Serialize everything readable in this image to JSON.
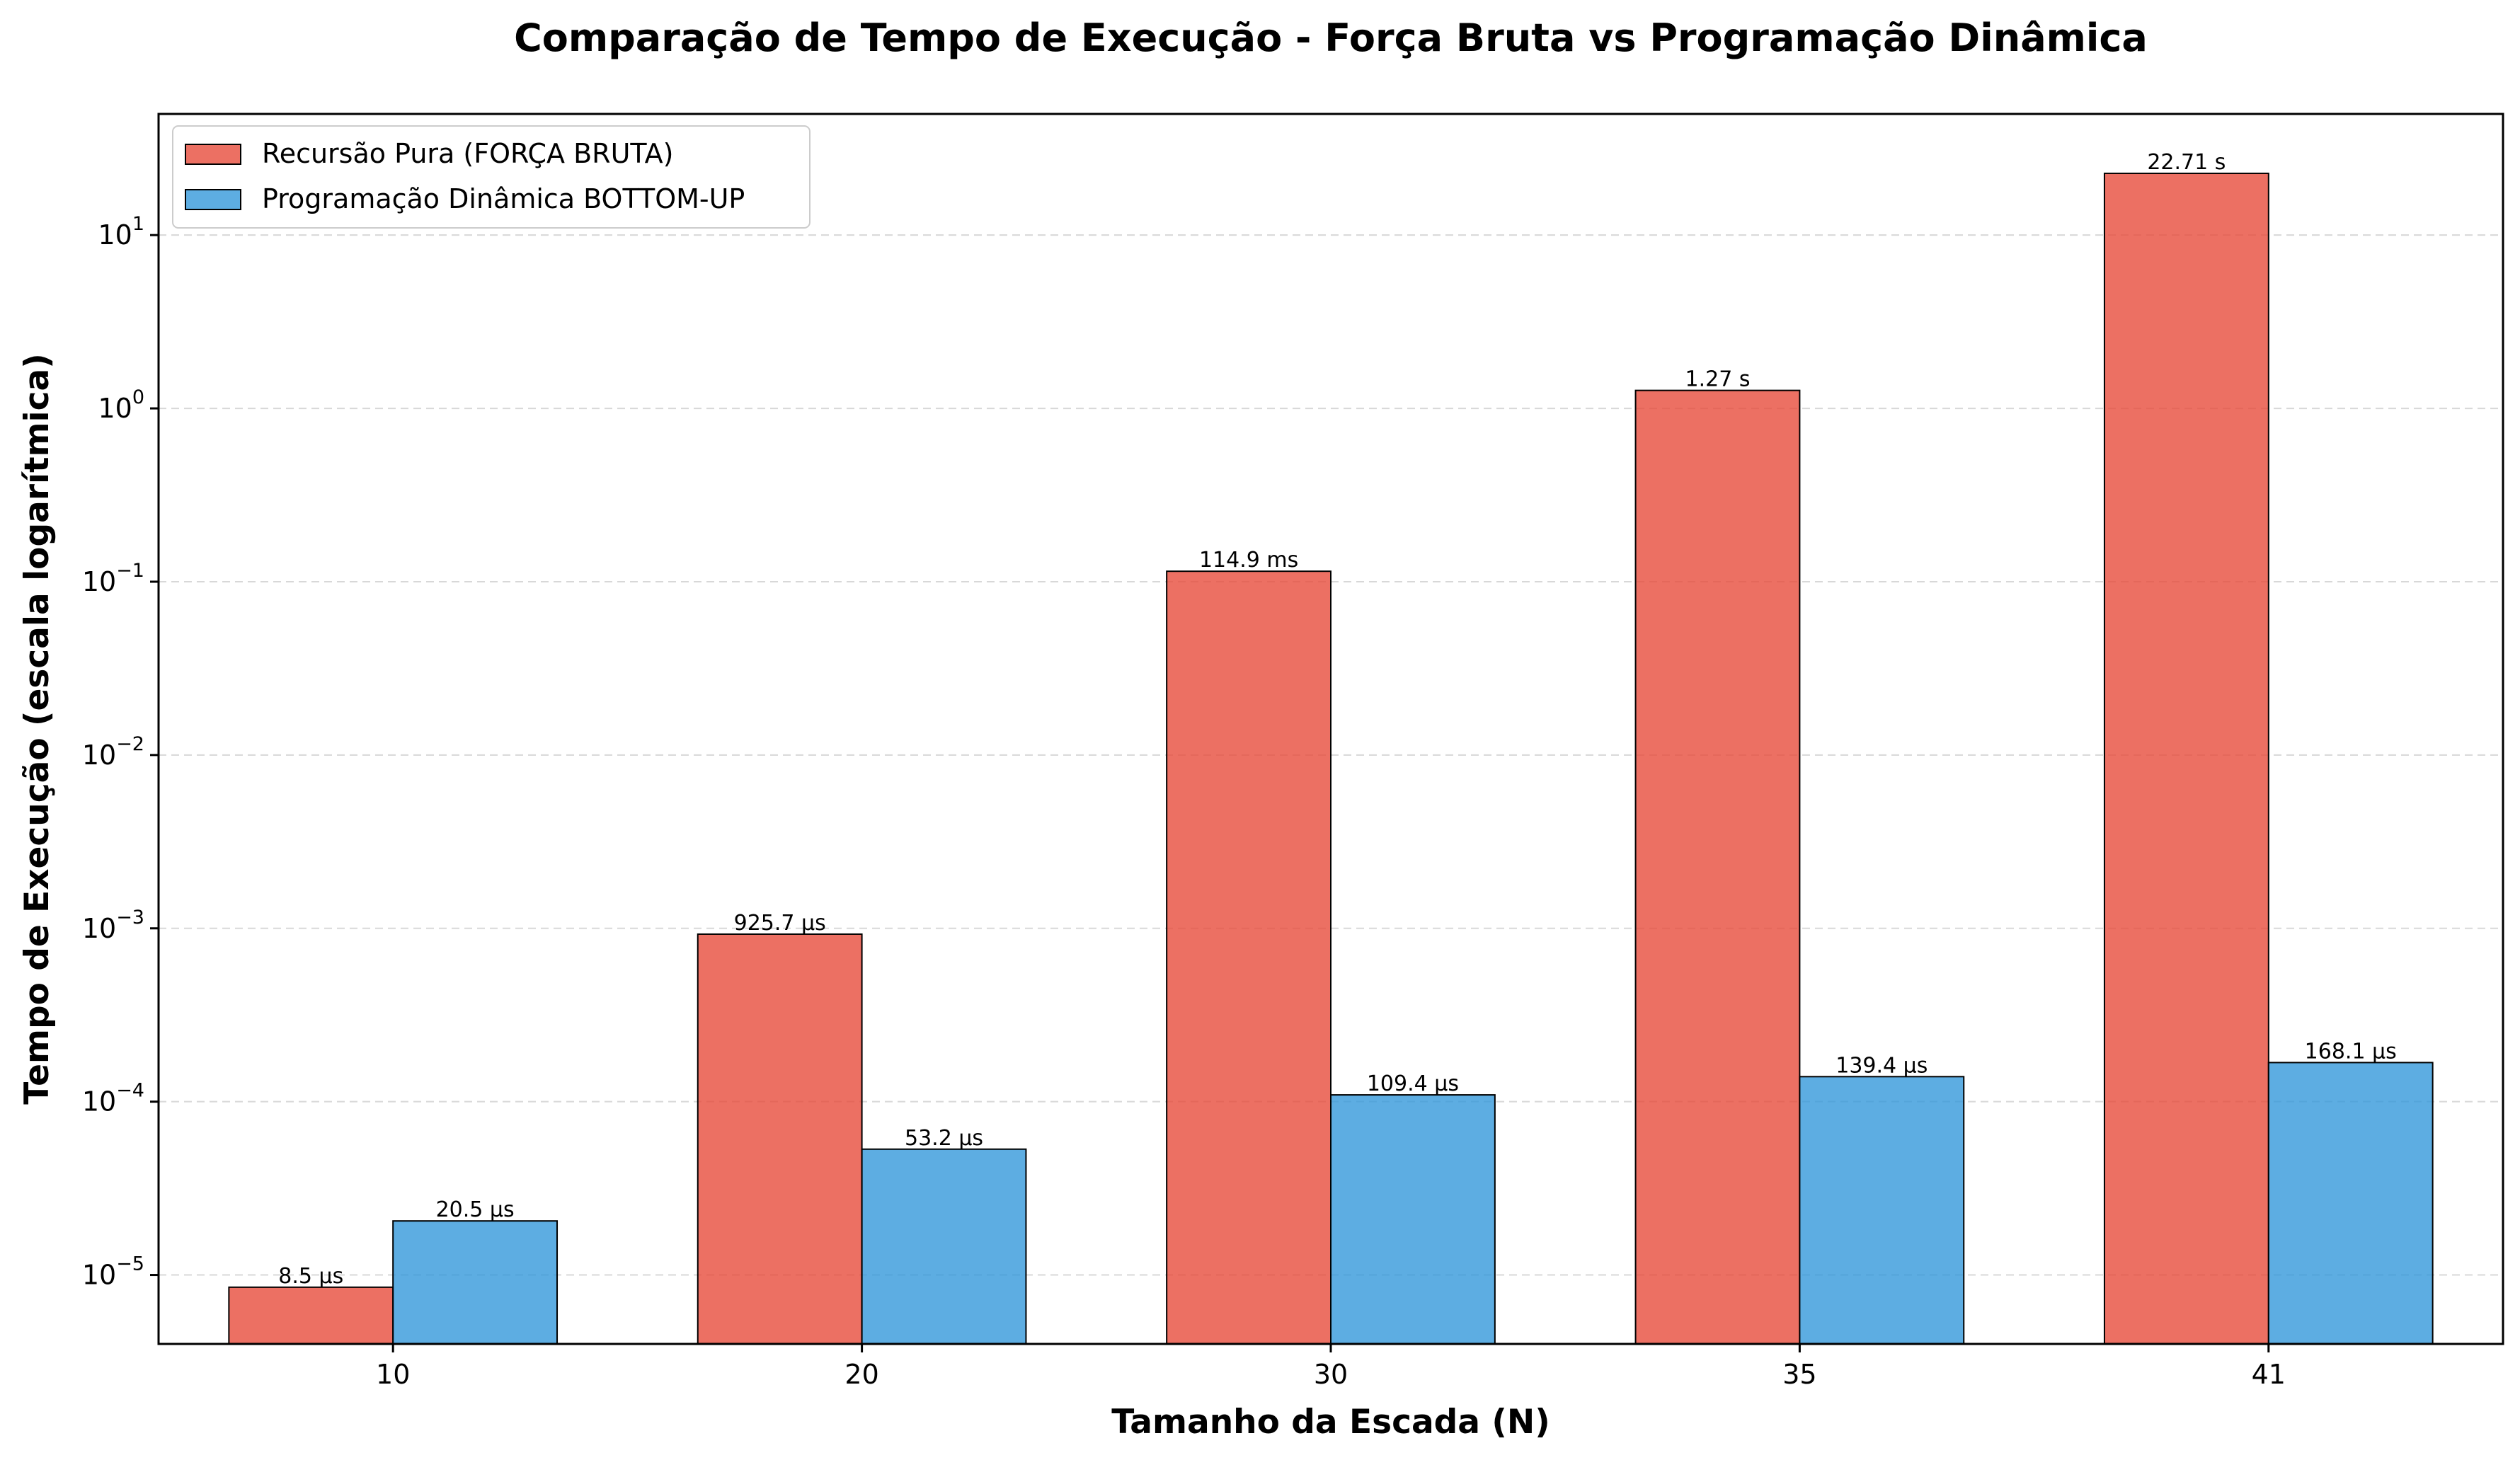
{
  "chart_data": {
    "type": "bar",
    "title": "Comparação de Tempo de Execução - Força Bruta vs Programação Dinâmica",
    "xlabel": "Tamanho da Escada (N)",
    "ylabel": "Tempo de Execução (escala logarítmica)",
    "yscale": "log",
    "ylim": [
      4e-06,
      50
    ],
    "yticks": [
      {
        "value": 1e-05,
        "base": "10",
        "exp": "−5"
      },
      {
        "value": 0.0001,
        "base": "10",
        "exp": "−4"
      },
      {
        "value": 0.001,
        "base": "10",
        "exp": "−3"
      },
      {
        "value": 0.01,
        "base": "10",
        "exp": "−2"
      },
      {
        "value": 0.1,
        "base": "10",
        "exp": "−1"
      },
      {
        "value": 1,
        "base": "10",
        "exp": "0"
      },
      {
        "value": 10,
        "base": "10",
        "exp": "1"
      }
    ],
    "grid": "y-dashed",
    "legend_position": "top-left",
    "categories": [
      "10",
      "20",
      "30",
      "35",
      "41"
    ],
    "series": [
      {
        "name": "Recursão Pura (FORÇA BRUTA)",
        "color": "#e74c3c",
        "values": [
          8.5e-06,
          0.0009257,
          0.1149,
          1.27,
          22.71
        ],
        "labels": [
          "8.5 μs",
          "925.7 μs",
          "114.9 ms",
          "1.27 s",
          "22.71 s"
        ]
      },
      {
        "name": "Programação Dinâmica BOTTOM-UP",
        "color": "#3498db",
        "values": [
          2.05e-05,
          5.32e-05,
          0.0001094,
          0.0001394,
          0.0001681
        ],
        "labels": [
          "20.5 μs",
          "53.2 μs",
          "109.4 μs",
          "139.4 μs",
          "168.1 μs"
        ]
      }
    ]
  }
}
